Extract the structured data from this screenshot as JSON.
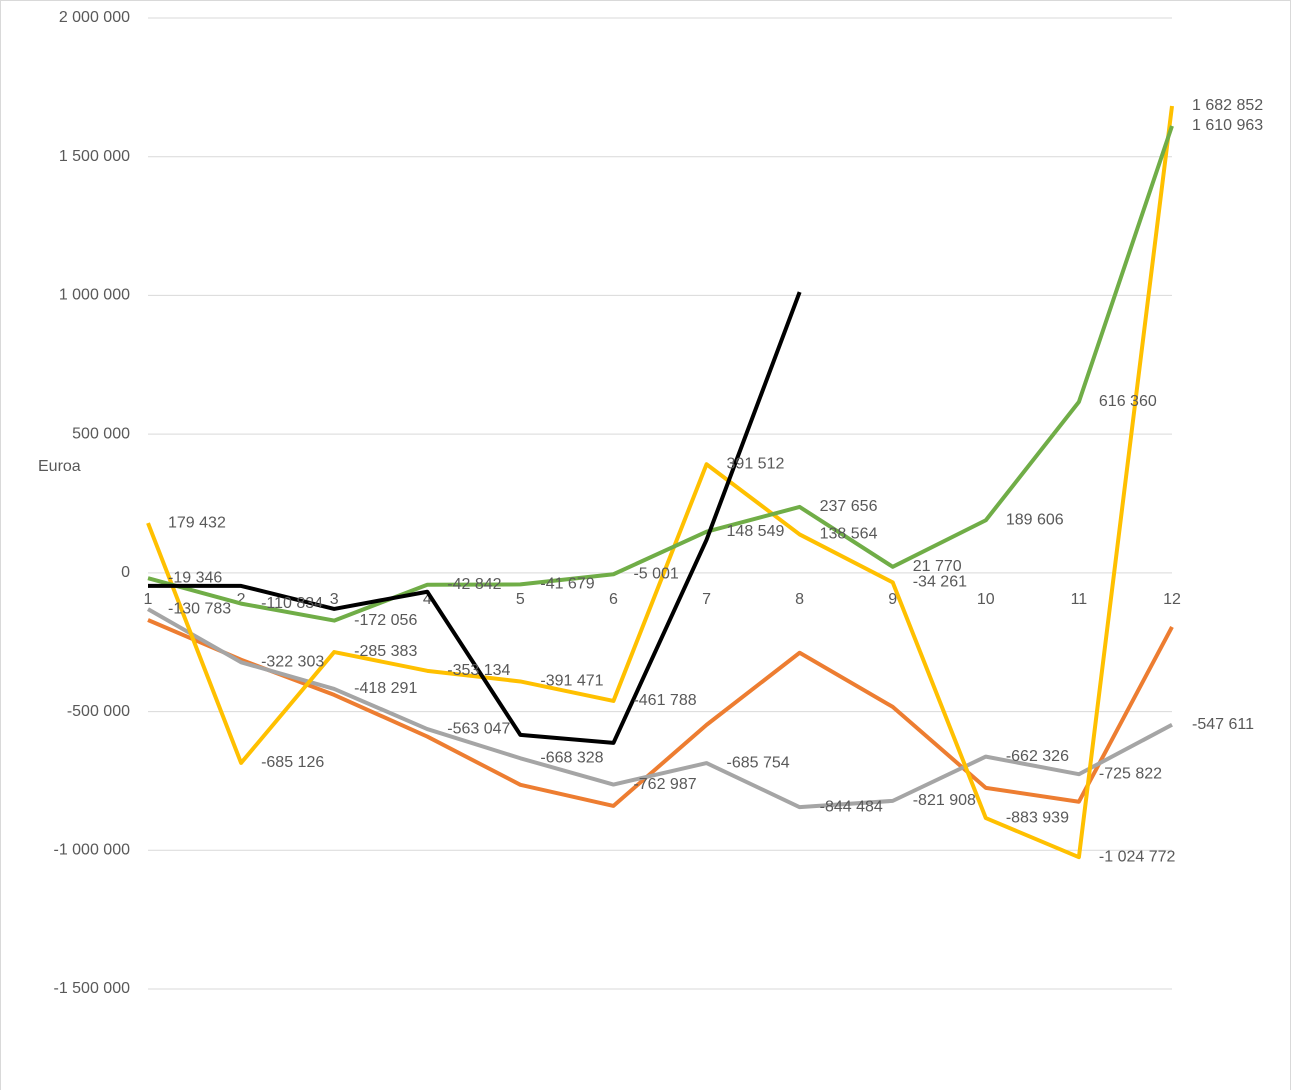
{
  "chart_data": {
    "type": "line",
    "y_label": "Euroa",
    "categories": [
      "1",
      "2",
      "3",
      "4",
      "5",
      "6",
      "7",
      "8",
      "9",
      "10",
      "11",
      "12"
    ],
    "ylim": [
      -1500000,
      2000000
    ],
    "yticks": [
      {
        "value": -1500000,
        "label": "-1 500 000"
      },
      {
        "value": -1000000,
        "label": "-1 000 000"
      },
      {
        "value": -500000,
        "label": "-500 000"
      },
      0,
      {
        "value": 500000,
        "label": "500 000"
      },
      {
        "value": 1000000,
        "label": "1 000 000"
      },
      {
        "value": 1500000,
        "label": "1 500 000"
      },
      {
        "value": 2000000,
        "label": "2 000 000"
      }
    ],
    "grid": true,
    "series": [
      {
        "color": "#ed7d31",
        "values": [
          -170000,
          -313000,
          -440000,
          -590000,
          -764000,
          -840000,
          -548000,
          -288000,
          -483000,
          -775000,
          -825000,
          -195000
        ]
      },
      {
        "color": "#a5a5a5",
        "values": [
          -130783,
          -322303,
          -418291,
          -563047,
          -668328,
          -762987,
          -685754,
          -844484,
          -821908,
          -662326,
          -725822,
          -547611
        ],
        "value_labels": [
          "-130 783",
          "-322 303",
          "-418 291",
          "-563 047",
          "-668 328",
          "-762 987",
          "-685 754",
          "-844 484",
          "-821 908",
          "-662 326",
          "-725 822",
          "-547 611"
        ]
      },
      {
        "color": "#ffc000",
        "values": [
          179432,
          -685126,
          -285383,
          -353134,
          -391471,
          -461788,
          391512,
          138564,
          -34261,
          -883939,
          -1024772,
          1682852
        ],
        "value_labels": [
          "179 432",
          "-685 126",
          "-285 383",
          "-353 134",
          "-391 471",
          "-461 788",
          "391 512",
          "138 564",
          "-34 261",
          "-883 939",
          "-1 024 772",
          "1 682 852"
        ]
      },
      {
        "color": "#70ad47",
        "values": [
          -19346,
          -110834,
          -172056,
          -42842,
          -41679,
          -5001,
          148549,
          237656,
          21770,
          189606,
          616360,
          1610963
        ],
        "value_labels": [
          "-19 346",
          "-110 834",
          "-172 056",
          "-42 842",
          "-41 679",
          "-5 001",
          "148 549",
          "237 656",
          "21 770",
          "189 606",
          "616 360",
          "1 610 963"
        ]
      },
      {
        "color": "#000000",
        "values": [
          -47000,
          -47000,
          -130000,
          -68000,
          -584000,
          -613000,
          119000,
          1012000,
          null,
          null,
          null,
          null
        ]
      }
    ]
  }
}
